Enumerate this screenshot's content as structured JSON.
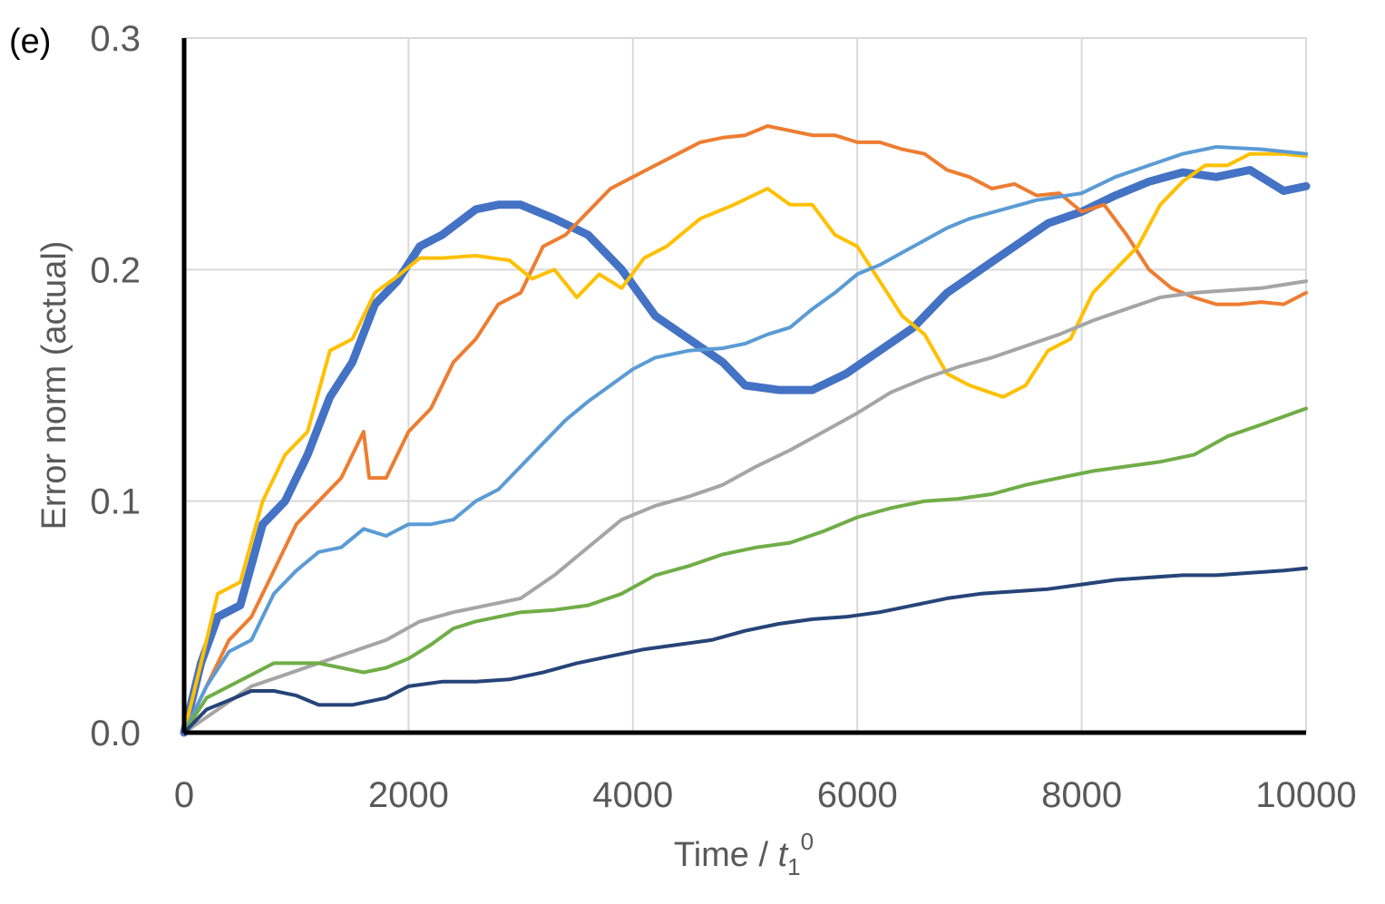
{
  "chart_data": {
    "type": "line",
    "panel_label": "(e)",
    "xlabel": {
      "prefix": "Time / ",
      "var": "t",
      "sub": "1",
      "sup": "0"
    },
    "ylabel": "Error norm (actual)",
    "xlim": [
      0,
      10000
    ],
    "ylim": [
      0,
      0.3
    ],
    "xticks": [
      "0",
      "2000",
      "4000",
      "6000",
      "8000",
      "10000"
    ],
    "yticks": [
      "0.0",
      "0.1",
      "0.2",
      "0.3"
    ],
    "grid": true,
    "series": [
      {
        "color": "#4472C4",
        "width": 9,
        "points": [
          [
            0,
            0
          ],
          [
            150,
            0.03
          ],
          [
            300,
            0.05
          ],
          [
            500,
            0.055
          ],
          [
            700,
            0.09
          ],
          [
            900,
            0.1
          ],
          [
            1100,
            0.12
          ],
          [
            1300,
            0.145
          ],
          [
            1500,
            0.16
          ],
          [
            1700,
            0.185
          ],
          [
            1900,
            0.195
          ],
          [
            2100,
            0.21
          ],
          [
            2300,
            0.215
          ],
          [
            2600,
            0.226
          ],
          [
            2800,
            0.228
          ],
          [
            3000,
            0.228
          ],
          [
            3300,
            0.222
          ],
          [
            3600,
            0.215
          ],
          [
            3900,
            0.2
          ],
          [
            4200,
            0.18
          ],
          [
            4500,
            0.17
          ],
          [
            4800,
            0.16
          ],
          [
            5000,
            0.15
          ],
          [
            5300,
            0.148
          ],
          [
            5600,
            0.148
          ],
          [
            5900,
            0.155
          ],
          [
            6200,
            0.165
          ],
          [
            6500,
            0.175
          ],
          [
            6800,
            0.19
          ],
          [
            7100,
            0.2
          ],
          [
            7400,
            0.21
          ],
          [
            7700,
            0.22
          ],
          [
            8000,
            0.225
          ],
          [
            8300,
            0.232
          ],
          [
            8600,
            0.238
          ],
          [
            8900,
            0.242
          ],
          [
            9200,
            0.24
          ],
          [
            9500,
            0.243
          ],
          [
            9800,
            0.234
          ],
          [
            10000,
            0.236
          ]
        ]
      },
      {
        "color": "#ED7D31",
        "width": 4,
        "points": [
          [
            0,
            0
          ],
          [
            200,
            0.02
          ],
          [
            400,
            0.04
          ],
          [
            600,
            0.05
          ],
          [
            800,
            0.07
          ],
          [
            1000,
            0.09
          ],
          [
            1200,
            0.1
          ],
          [
            1400,
            0.11
          ],
          [
            1600,
            0.13
          ],
          [
            1650,
            0.11
          ],
          [
            1800,
            0.11
          ],
          [
            2000,
            0.13
          ],
          [
            2200,
            0.14
          ],
          [
            2400,
            0.16
          ],
          [
            2600,
            0.17
          ],
          [
            2800,
            0.185
          ],
          [
            3000,
            0.19
          ],
          [
            3200,
            0.21
          ],
          [
            3400,
            0.215
          ],
          [
            3600,
            0.225
          ],
          [
            3800,
            0.235
          ],
          [
            4000,
            0.24
          ],
          [
            4200,
            0.245
          ],
          [
            4400,
            0.25
          ],
          [
            4600,
            0.255
          ],
          [
            4800,
            0.257
          ],
          [
            5000,
            0.258
          ],
          [
            5200,
            0.262
          ],
          [
            5400,
            0.26
          ],
          [
            5600,
            0.258
          ],
          [
            5800,
            0.258
          ],
          [
            6000,
            0.255
          ],
          [
            6200,
            0.255
          ],
          [
            6400,
            0.252
          ],
          [
            6600,
            0.25
          ],
          [
            6800,
            0.243
          ],
          [
            7000,
            0.24
          ],
          [
            7200,
            0.235
          ],
          [
            7400,
            0.237
          ],
          [
            7600,
            0.232
          ],
          [
            7800,
            0.233
          ],
          [
            8000,
            0.225
          ],
          [
            8200,
            0.228
          ],
          [
            8400,
            0.215
          ],
          [
            8600,
            0.2
          ],
          [
            8800,
            0.192
          ],
          [
            9000,
            0.188
          ],
          [
            9200,
            0.185
          ],
          [
            9400,
            0.185
          ],
          [
            9600,
            0.186
          ],
          [
            9800,
            0.185
          ],
          [
            10000,
            0.19
          ]
        ]
      },
      {
        "color": "#FFC000",
        "width": 4,
        "points": [
          [
            0,
            0
          ],
          [
            150,
            0.03
          ],
          [
            300,
            0.06
          ],
          [
            500,
            0.065
          ],
          [
            700,
            0.1
          ],
          [
            900,
            0.12
          ],
          [
            1100,
            0.13
          ],
          [
            1300,
            0.165
          ],
          [
            1500,
            0.17
          ],
          [
            1700,
            0.19
          ],
          [
            1900,
            0.197
          ],
          [
            2100,
            0.205
          ],
          [
            2300,
            0.205
          ],
          [
            2600,
            0.206
          ],
          [
            2900,
            0.204
          ],
          [
            3100,
            0.196
          ],
          [
            3300,
            0.2
          ],
          [
            3500,
            0.188
          ],
          [
            3700,
            0.198
          ],
          [
            3900,
            0.192
          ],
          [
            4100,
            0.205
          ],
          [
            4300,
            0.21
          ],
          [
            4600,
            0.222
          ],
          [
            4900,
            0.228
          ],
          [
            5200,
            0.235
          ],
          [
            5400,
            0.228
          ],
          [
            5600,
            0.228
          ],
          [
            5800,
            0.215
          ],
          [
            6000,
            0.21
          ],
          [
            6200,
            0.195
          ],
          [
            6400,
            0.18
          ],
          [
            6600,
            0.172
          ],
          [
            6800,
            0.155
          ],
          [
            7000,
            0.15
          ],
          [
            7300,
            0.145
          ],
          [
            7500,
            0.15
          ],
          [
            7700,
            0.165
          ],
          [
            7900,
            0.17
          ],
          [
            8100,
            0.19
          ],
          [
            8300,
            0.2
          ],
          [
            8500,
            0.21
          ],
          [
            8700,
            0.228
          ],
          [
            8900,
            0.238
          ],
          [
            9100,
            0.245
          ],
          [
            9300,
            0.245
          ],
          [
            9500,
            0.25
          ],
          [
            9800,
            0.25
          ],
          [
            10000,
            0.249
          ]
        ]
      },
      {
        "color": "#5B9BD5",
        "width": 4,
        "points": [
          [
            0,
            0
          ],
          [
            200,
            0.02
          ],
          [
            400,
            0.035
          ],
          [
            600,
            0.04
          ],
          [
            800,
            0.06
          ],
          [
            1000,
            0.07
          ],
          [
            1200,
            0.078
          ],
          [
            1400,
            0.08
          ],
          [
            1600,
            0.088
          ],
          [
            1800,
            0.085
          ],
          [
            2000,
            0.09
          ],
          [
            2200,
            0.09
          ],
          [
            2400,
            0.092
          ],
          [
            2600,
            0.1
          ],
          [
            2800,
            0.105
          ],
          [
            3000,
            0.115
          ],
          [
            3200,
            0.125
          ],
          [
            3400,
            0.135
          ],
          [
            3600,
            0.143
          ],
          [
            3800,
            0.15
          ],
          [
            4000,
            0.157
          ],
          [
            4200,
            0.162
          ],
          [
            4500,
            0.165
          ],
          [
            4800,
            0.166
          ],
          [
            5000,
            0.168
          ],
          [
            5200,
            0.172
          ],
          [
            5400,
            0.175
          ],
          [
            5600,
            0.183
          ],
          [
            5800,
            0.19
          ],
          [
            6000,
            0.198
          ],
          [
            6200,
            0.202
          ],
          [
            6500,
            0.21
          ],
          [
            6800,
            0.218
          ],
          [
            7000,
            0.222
          ],
          [
            7300,
            0.226
          ],
          [
            7600,
            0.23
          ],
          [
            8000,
            0.233
          ],
          [
            8300,
            0.24
          ],
          [
            8600,
            0.245
          ],
          [
            8900,
            0.25
          ],
          [
            9200,
            0.253
          ],
          [
            9600,
            0.252
          ],
          [
            10000,
            0.25
          ]
        ]
      },
      {
        "color": "#A5A5A5",
        "width": 4,
        "points": [
          [
            0,
            0
          ],
          [
            300,
            0.01
          ],
          [
            600,
            0.02
          ],
          [
            900,
            0.025
          ],
          [
            1200,
            0.03
          ],
          [
            1500,
            0.035
          ],
          [
            1800,
            0.04
          ],
          [
            2100,
            0.048
          ],
          [
            2400,
            0.052
          ],
          [
            2700,
            0.055
          ],
          [
            3000,
            0.058
          ],
          [
            3300,
            0.068
          ],
          [
            3600,
            0.08
          ],
          [
            3900,
            0.092
          ],
          [
            4200,
            0.098
          ],
          [
            4500,
            0.102
          ],
          [
            4800,
            0.107
          ],
          [
            5100,
            0.115
          ],
          [
            5400,
            0.122
          ],
          [
            5700,
            0.13
          ],
          [
            6000,
            0.138
          ],
          [
            6300,
            0.147
          ],
          [
            6600,
            0.153
          ],
          [
            6900,
            0.158
          ],
          [
            7200,
            0.162
          ],
          [
            7500,
            0.167
          ],
          [
            7800,
            0.172
          ],
          [
            8100,
            0.178
          ],
          [
            8400,
            0.183
          ],
          [
            8700,
            0.188
          ],
          [
            9000,
            0.19
          ],
          [
            9300,
            0.191
          ],
          [
            9600,
            0.192
          ],
          [
            10000,
            0.195
          ]
        ]
      },
      {
        "color": "#70AD47",
        "width": 4,
        "points": [
          [
            0,
            0
          ],
          [
            200,
            0.015
          ],
          [
            400,
            0.02
          ],
          [
            600,
            0.025
          ],
          [
            800,
            0.03
          ],
          [
            1000,
            0.03
          ],
          [
            1200,
            0.03
          ],
          [
            1400,
            0.028
          ],
          [
            1600,
            0.026
          ],
          [
            1800,
            0.028
          ],
          [
            2000,
            0.032
          ],
          [
            2200,
            0.038
          ],
          [
            2400,
            0.045
          ],
          [
            2600,
            0.048
          ],
          [
            2800,
            0.05
          ],
          [
            3000,
            0.052
          ],
          [
            3300,
            0.053
          ],
          [
            3600,
            0.055
          ],
          [
            3900,
            0.06
          ],
          [
            4200,
            0.068
          ],
          [
            4500,
            0.072
          ],
          [
            4800,
            0.077
          ],
          [
            5100,
            0.08
          ],
          [
            5400,
            0.082
          ],
          [
            5700,
            0.087
          ],
          [
            6000,
            0.093
          ],
          [
            6300,
            0.097
          ],
          [
            6600,
            0.1
          ],
          [
            6900,
            0.101
          ],
          [
            7200,
            0.103
          ],
          [
            7500,
            0.107
          ],
          [
            7800,
            0.11
          ],
          [
            8100,
            0.113
          ],
          [
            8400,
            0.115
          ],
          [
            8700,
            0.117
          ],
          [
            9000,
            0.12
          ],
          [
            9300,
            0.128
          ],
          [
            9600,
            0.133
          ],
          [
            10000,
            0.14
          ]
        ]
      },
      {
        "color": "#264478",
        "width": 4,
        "points": [
          [
            0,
            0
          ],
          [
            200,
            0.01
          ],
          [
            400,
            0.014
          ],
          [
            600,
            0.018
          ],
          [
            800,
            0.018
          ],
          [
            1000,
            0.016
          ],
          [
            1200,
            0.012
          ],
          [
            1500,
            0.012
          ],
          [
            1800,
            0.015
          ],
          [
            2000,
            0.02
          ],
          [
            2300,
            0.022
          ],
          [
            2600,
            0.022
          ],
          [
            2900,
            0.023
          ],
          [
            3200,
            0.026
          ],
          [
            3500,
            0.03
          ],
          [
            3800,
            0.033
          ],
          [
            4100,
            0.036
          ],
          [
            4400,
            0.038
          ],
          [
            4700,
            0.04
          ],
          [
            5000,
            0.044
          ],
          [
            5300,
            0.047
          ],
          [
            5600,
            0.049
          ],
          [
            5900,
            0.05
          ],
          [
            6200,
            0.052
          ],
          [
            6500,
            0.055
          ],
          [
            6800,
            0.058
          ],
          [
            7100,
            0.06
          ],
          [
            7400,
            0.061
          ],
          [
            7700,
            0.062
          ],
          [
            8000,
            0.064
          ],
          [
            8300,
            0.066
          ],
          [
            8600,
            0.067
          ],
          [
            8900,
            0.068
          ],
          [
            9200,
            0.068
          ],
          [
            9500,
            0.069
          ],
          [
            9800,
            0.07
          ],
          [
            10000,
            0.071
          ]
        ]
      }
    ]
  }
}
